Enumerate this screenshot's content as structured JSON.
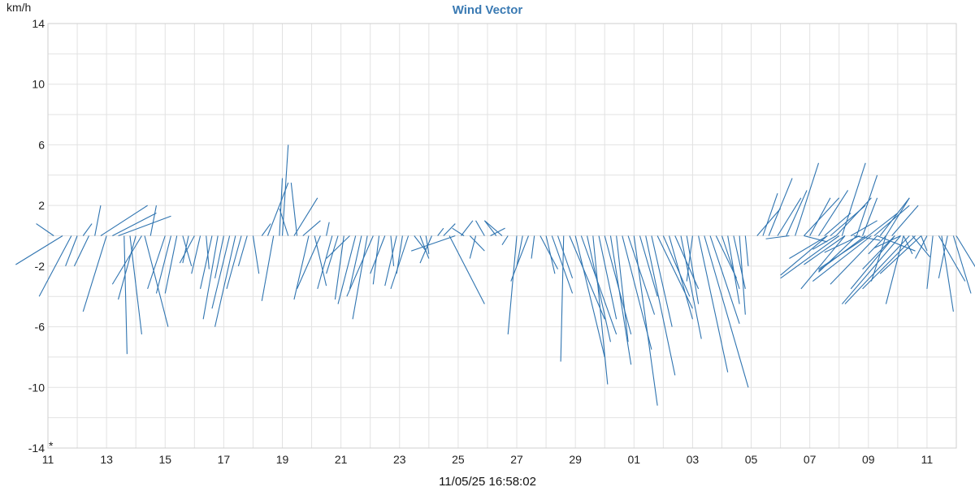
{
  "chart_data": {
    "type": "wind-vector",
    "title": "Wind Vector",
    "unit_label": "km/h",
    "timestamp": "11/05/25 16:58:02",
    "corner_mark": "*",
    "ylim": [
      -14,
      14
    ],
    "y_ticks": [
      {
        "value": 14,
        "label": "14"
      },
      {
        "value": 10,
        "label": "10"
      },
      {
        "value": 6,
        "label": "6"
      },
      {
        "value": 2,
        "label": "2"
      },
      {
        "value": -2,
        "label": "-2"
      },
      {
        "value": -6,
        "label": "-6"
      },
      {
        "value": -10,
        "label": "-10"
      },
      {
        "value": -14,
        "label": "-14"
      }
    ],
    "xlim": [
      0,
      31
    ],
    "x_ticks": [
      {
        "value": 0,
        "label": "11"
      },
      {
        "value": 2,
        "label": "13"
      },
      {
        "value": 4,
        "label": "15"
      },
      {
        "value": 6,
        "label": "17"
      },
      {
        "value": 8,
        "label": "19"
      },
      {
        "value": 10,
        "label": "21"
      },
      {
        "value": 12,
        "label": "23"
      },
      {
        "value": 14,
        "label": "25"
      },
      {
        "value": 16,
        "label": "27"
      },
      {
        "value": 18,
        "label": "29"
      },
      {
        "value": 20,
        "label": "01"
      },
      {
        "value": 22,
        "label": "03"
      },
      {
        "value": 24,
        "label": "05"
      },
      {
        "value": 26,
        "label": "07"
      },
      {
        "value": 28,
        "label": "09"
      },
      {
        "value": 30,
        "label": "11"
      }
    ],
    "vectors": [
      [
        0.2,
        -0.6,
        0.8
      ],
      [
        0.5,
        -1.6,
        -1.9
      ],
      [
        0.8,
        -1.1,
        -4.0
      ],
      [
        1.0,
        -0.4,
        -2.0
      ],
      [
        1.2,
        0.3,
        0.8
      ],
      [
        1.4,
        -0.5,
        -2.0
      ],
      [
        1.6,
        0.2,
        2.0
      ],
      [
        1.8,
        1.6,
        2.0
      ],
      [
        2.0,
        -0.8,
        -5.0
      ],
      [
        2.2,
        1.5,
        1.5
      ],
      [
        2.4,
        1.8,
        1.3
      ],
      [
        2.6,
        0.1,
        -7.8
      ],
      [
        2.8,
        0.4,
        -6.5
      ],
      [
        3.0,
        -0.6,
        -4.2
      ],
      [
        3.2,
        -1.0,
        -3.2
      ],
      [
        3.3,
        0.8,
        -6.0
      ],
      [
        3.5,
        0.2,
        2.0
      ],
      [
        4.0,
        -0.6,
        -3.5
      ],
      [
        4.2,
        -0.5,
        -3.8
      ],
      [
        4.4,
        -0.4,
        -3.8
      ],
      [
        4.6,
        0.3,
        -2.0
      ],
      [
        4.8,
        -0.2,
        -1.8
      ],
      [
        5.0,
        -0.5,
        -1.8
      ],
      [
        5.2,
        -0.3,
        -2.5
      ],
      [
        5.4,
        0.1,
        -2.2
      ],
      [
        5.6,
        -0.4,
        -3.5
      ],
      [
        5.8,
        -0.5,
        -5.5
      ],
      [
        6.0,
        -0.3,
        -2.8
      ],
      [
        6.2,
        -0.6,
        -4.8
      ],
      [
        6.4,
        -0.7,
        -6.0
      ],
      [
        6.6,
        -0.5,
        -3.5
      ],
      [
        6.8,
        -0.3,
        -2.0
      ],
      [
        7.0,
        0.2,
        -2.5
      ],
      [
        7.3,
        0.3,
        0.8
      ],
      [
        7.5,
        0.7,
        3.5
      ],
      [
        7.7,
        -0.4,
        -4.3
      ],
      [
        7.9,
        0.1,
        3.8
      ],
      [
        8.0,
        0.2,
        6.0
      ],
      [
        8.2,
        -0.3,
        1.8
      ],
      [
        8.4,
        0.8,
        2.5
      ],
      [
        8.5,
        -0.2,
        3.5
      ],
      [
        8.7,
        0.6,
        1.0
      ],
      [
        8.9,
        -0.5,
        -4.2
      ],
      [
        9.1,
        0.4,
        -3.3
      ],
      [
        9.3,
        -0.8,
        -3.5
      ],
      [
        9.5,
        0.1,
        0.9
      ],
      [
        9.7,
        -0.5,
        -3.5
      ],
      [
        9.9,
        -0.4,
        -2.5
      ],
      [
        10.1,
        -0.3,
        -4.2
      ],
      [
        10.3,
        -0.8,
        -1.5
      ],
      [
        10.5,
        -0.6,
        -4.5
      ],
      [
        10.7,
        -0.4,
        -3.5
      ],
      [
        10.9,
        -0.5,
        -5.5
      ],
      [
        11.1,
        -0.9,
        -4.0
      ],
      [
        11.3,
        -0.2,
        -3.2
      ],
      [
        11.5,
        -0.5,
        -2.5
      ],
      [
        11.7,
        0.1,
        -2.0
      ],
      [
        11.9,
        -0.4,
        -3.3
      ],
      [
        12.1,
        -0.2,
        -2.5
      ],
      [
        12.3,
        -0.6,
        -3.5
      ],
      [
        12.5,
        0.4,
        -1.0
      ],
      [
        12.7,
        0.3,
        -1.5
      ],
      [
        12.9,
        0.1,
        -1.2
      ],
      [
        13.1,
        -0.4,
        -1.8
      ],
      [
        13.3,
        0.2,
        0.5
      ],
      [
        13.5,
        0.4,
        0.8
      ],
      [
        13.7,
        1.2,
        -4.5
      ],
      [
        13.9,
        -1.5,
        -1.0
      ],
      [
        14.1,
        0.4,
        1.0
      ],
      [
        14.2,
        -0.4,
        0.5
      ],
      [
        14.4,
        0.5,
        -1.0
      ],
      [
        14.6,
        -0.2,
        -1.5
      ],
      [
        14.9,
        -0.3,
        1.0
      ],
      [
        15.1,
        0.5,
        0.5
      ],
      [
        15.3,
        -0.4,
        1.0
      ],
      [
        15.5,
        -0.6,
        1.0
      ],
      [
        15.7,
        -0.2,
        -0.6
      ],
      [
        16.0,
        -0.3,
        -6.5
      ],
      [
        16.2,
        -0.2,
        -2.0
      ],
      [
        16.4,
        -0.6,
        -3.0
      ],
      [
        16.6,
        -0.1,
        -1.5
      ],
      [
        16.8,
        0.6,
        -2.2
      ],
      [
        17.0,
        0.3,
        -2.5
      ],
      [
        17.2,
        0.7,
        -3.8
      ],
      [
        17.4,
        0.5,
        -2.8
      ],
      [
        17.6,
        -0.1,
        -8.3
      ],
      [
        17.8,
        1.2,
        -5.5
      ],
      [
        18.0,
        1.0,
        -8.0
      ],
      [
        18.2,
        1.2,
        -6.5
      ],
      [
        18.4,
        0.8,
        -7.0
      ],
      [
        18.6,
        0.5,
        -9.8
      ],
      [
        18.8,
        0.6,
        -5.5
      ],
      [
        19.0,
        0.9,
        -6.5
      ],
      [
        19.2,
        0.7,
        -8.5
      ],
      [
        19.4,
        0.4,
        -7.0
      ],
      [
        19.6,
        1.0,
        -7.5
      ],
      [
        19.8,
        0.9,
        -5.2
      ],
      [
        20.0,
        0.8,
        -11.2
      ],
      [
        20.2,
        0.6,
        -4.0
      ],
      [
        20.4,
        1.0,
        -9.2
      ],
      [
        20.6,
        0.7,
        -6.0
      ],
      [
        20.8,
        1.2,
        -4.8
      ],
      [
        21.0,
        0.9,
        -4.0
      ],
      [
        21.2,
        0.8,
        -5.5
      ],
      [
        21.4,
        0.8,
        -3.5
      ],
      [
        21.6,
        0.7,
        -6.8
      ],
      [
        21.8,
        0.4,
        -4.5
      ],
      [
        22.0,
        -0.2,
        -3.0
      ],
      [
        22.2,
        1.0,
        -9.0
      ],
      [
        22.4,
        1.5,
        -10.0
      ],
      [
        22.6,
        1.0,
        -5.8
      ],
      [
        22.8,
        0.7,
        -2.8
      ],
      [
        23.0,
        0.6,
        -3.5
      ],
      [
        23.2,
        0.4,
        -4.5
      ],
      [
        23.4,
        0.4,
        -3.5
      ],
      [
        23.6,
        0.2,
        -5.2
      ],
      [
        23.8,
        0.1,
        -2.0
      ],
      [
        24.2,
        0.8,
        1.8
      ],
      [
        24.4,
        0.5,
        2.8
      ],
      [
        24.6,
        0.8,
        3.8
      ],
      [
        24.9,
        0.8,
        2.5
      ],
      [
        25.2,
        0.7,
        3.0
      ],
      [
        25.5,
        0.8,
        4.8
      ],
      [
        25.8,
        1.2,
        2.5
      ],
      [
        26.0,
        0.7,
        2.5
      ],
      [
        26.3,
        1.0,
        3.0
      ],
      [
        26.5,
        0.9,
        1.5
      ],
      [
        26.7,
        1.2,
        2.0
      ],
      [
        26.9,
        1.2,
        2.5
      ],
      [
        27.1,
        0.8,
        4.8
      ],
      [
        27.4,
        0.9,
        1.0
      ],
      [
        27.6,
        0.7,
        4.0
      ],
      [
        27.8,
        0.5,
        2.5
      ],
      [
        28.0,
        1.0,
        1.5
      ],
      [
        28.2,
        1.2,
        2.0
      ],
      [
        28.4,
        1.0,
        2.5
      ],
      [
        28.6,
        0.8,
        2.5
      ],
      [
        28.8,
        0.9,
        2.0
      ],
      [
        25.3,
        -0.8,
        -0.2
      ],
      [
        25.8,
        0.8,
        -0.4
      ],
      [
        26.6,
        -1.3,
        -1.5
      ],
      [
        26.9,
        -0.8,
        -0.9
      ],
      [
        27.2,
        -1.4,
        -1.9
      ],
      [
        27.5,
        0.9,
        -0.3
      ],
      [
        27.7,
        -1.2,
        -1.1
      ],
      [
        28.0,
        -1.7,
        -2.2
      ],
      [
        28.3,
        1.3,
        -1.0
      ],
      [
        28.6,
        -0.6,
        -1.2
      ],
      [
        28.9,
        -1.1,
        -2.2
      ],
      [
        29.1,
        -0.9,
        -0.8
      ],
      [
        26.6,
        -1.6,
        -2.6
      ],
      [
        27.0,
        -2.0,
        -2.8
      ],
      [
        27.2,
        -1.5,
        -3.5
      ],
      [
        27.6,
        -1.3,
        -2.4
      ],
      [
        27.9,
        -1.6,
        -2.3
      ],
      [
        28.1,
        -2.0,
        -3.0
      ],
      [
        28.3,
        -1.6,
        -3.2
      ],
      [
        28.6,
        -0.5,
        -3.0
      ],
      [
        28.9,
        -1.5,
        -3.5
      ],
      [
        29.1,
        -2.0,
        -4.5
      ],
      [
        29.2,
        -0.6,
        -4.5
      ],
      [
        29.4,
        -2.2,
        -4.5
      ],
      [
        29.6,
        -1.8,
        -3.5
      ],
      [
        29.8,
        -1.4,
        -2.5
      ],
      [
        30.0,
        -0.4,
        -1.5
      ],
      [
        30.2,
        -0.2,
        -3.5
      ],
      [
        30.4,
        0.9,
        -3.0
      ],
      [
        30.5,
        0.4,
        -5.0
      ],
      [
        30.7,
        -0.3,
        -2.8
      ],
      [
        30.9,
        0.6,
        -3.8
      ],
      [
        31.0,
        1.2,
        -3.8
      ],
      [
        29.2,
        0.3,
        -1.2
      ],
      [
        29.5,
        0.6,
        -1.4
      ],
      [
        29.8,
        0.2,
        -1.0
      ]
    ]
  }
}
